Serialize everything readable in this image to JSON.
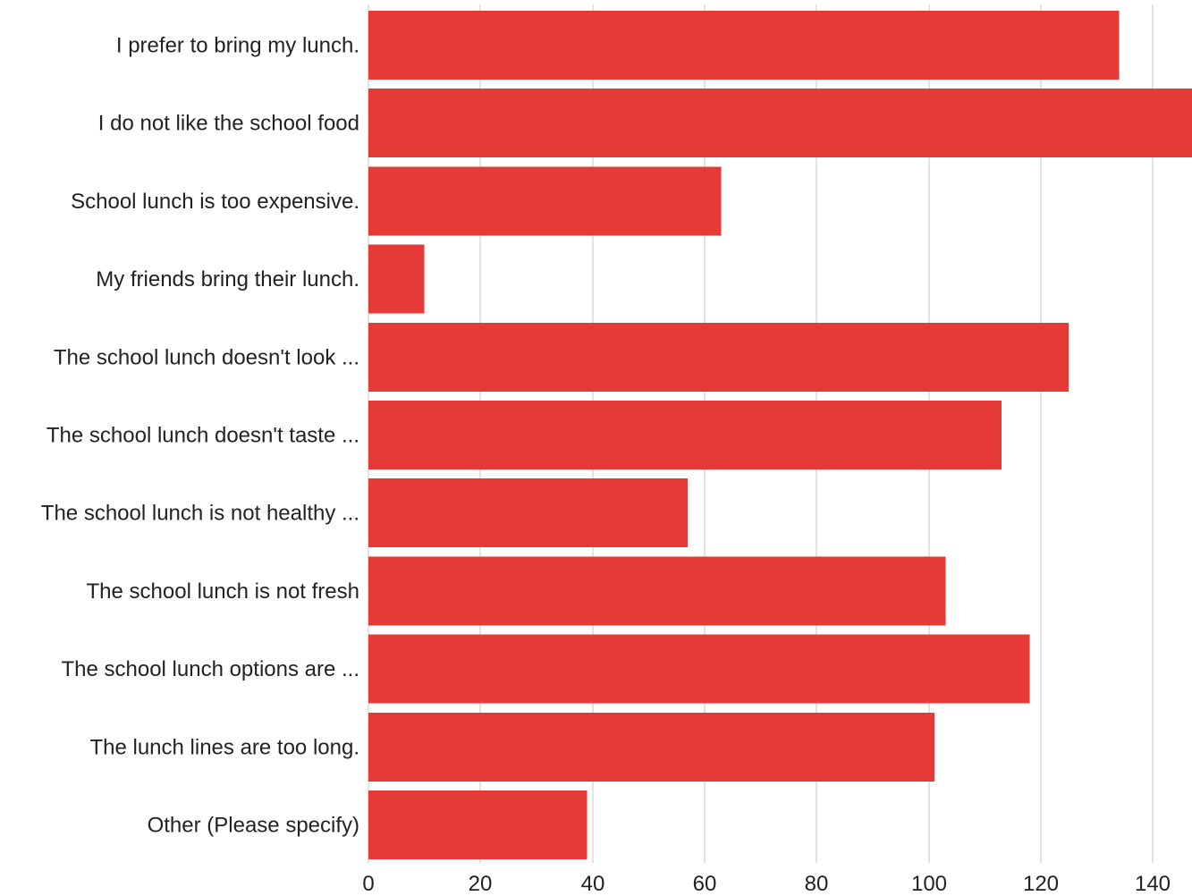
{
  "chart_data": {
    "type": "bar",
    "orientation": "horizontal",
    "categories": [
      "I prefer to bring my lunch.",
      "I do not like the school food",
      "School lunch is too expensive.",
      "My friends bring their lunch.",
      "The school lunch doesn't look ...",
      "The school lunch doesn't taste ...",
      "The school lunch is not healthy ...",
      "The school lunch is not fresh",
      "The school lunch options are ...",
      "The lunch lines are too long.",
      "Other (Please specify)"
    ],
    "values": [
      134,
      147,
      63,
      10,
      125,
      113,
      57,
      103,
      118,
      101,
      39
    ],
    "title": "",
    "xlabel": "",
    "ylabel": "",
    "xlim": [
      0,
      147
    ],
    "xticks": [
      0,
      20,
      40,
      60,
      80,
      100,
      120,
      140
    ],
    "grid": true,
    "legend": "none",
    "bar_color": "#e53a36"
  }
}
